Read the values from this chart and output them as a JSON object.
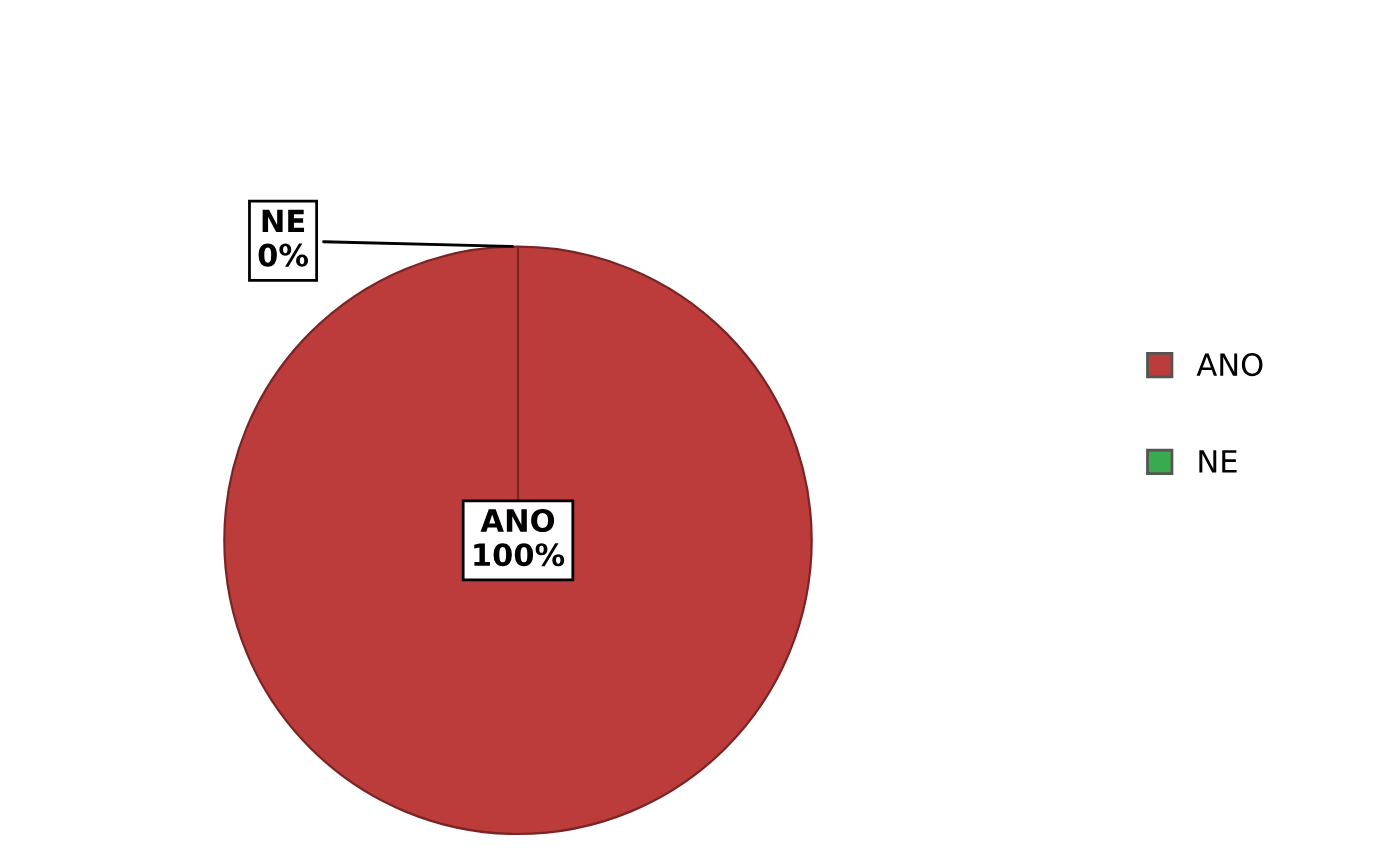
{
  "chart_data": {
    "type": "pie",
    "categories": [
      "ANO",
      "NE"
    ],
    "values": [
      100,
      0
    ],
    "colors": [
      "#bb3c3b",
      "#3aaa4e"
    ],
    "value_labels": [
      "100%",
      "0%"
    ],
    "legend": "right"
  }
}
